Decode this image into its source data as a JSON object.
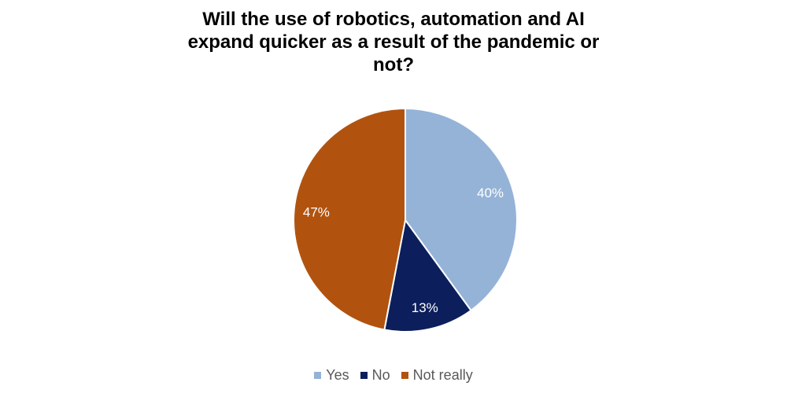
{
  "chart_data": {
    "type": "pie",
    "title_lines": [
      "Will the use of robotics, automation and AI",
      "expand quicker as a result of the pandemic or",
      "not?"
    ],
    "slices": [
      {
        "name": "Yes",
        "value": 40,
        "label": "40%",
        "color": "#95b3d7"
      },
      {
        "name": "No",
        "value": 13,
        "label": "13%",
        "color": "#0c1f5c"
      },
      {
        "name": "Not really",
        "value": 47,
        "label": "47%",
        "color": "#b1530f"
      }
    ],
    "legend_position": "bottom",
    "data_label_color": "#ffffff"
  }
}
